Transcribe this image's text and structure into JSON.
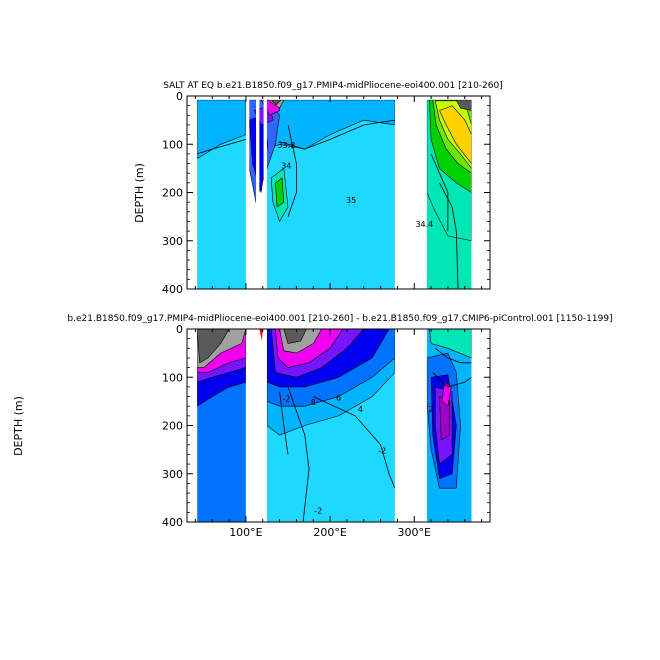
{
  "chart_data": [
    {
      "type": "heatmap",
      "title": "SALT AT EQ  b.e21.B1850.f09_g17.PMIP4-midPliocene-eoi400.001  [210-260]",
      "xlabel": "",
      "ylabel": "DEPTH (m)",
      "xlim": [
        30,
        390
      ],
      "ylim": [
        400,
        0
      ],
      "xticks": [],
      "yticks": [
        {
          "v": 0,
          "label": "0"
        },
        {
          "v": 100,
          "label": "100"
        },
        {
          "v": 200,
          "label": "200"
        },
        {
          "v": 300,
          "label": "300"
        },
        {
          "v": 400,
          "label": "400"
        }
      ],
      "contour_labels": [
        {
          "x": 148,
          "y": 108,
          "text": "33.8"
        },
        {
          "x": 148,
          "y": 150,
          "text": "34"
        },
        {
          "x": 225,
          "y": 222,
          "text": "35"
        },
        {
          "x": 312,
          "y": 272,
          "text": "34.4"
        }
      ]
    },
    {
      "type": "heatmap",
      "title": "b.e21.B1850.f09_g17.PMIP4-midPliocene-eoi400.001  [210-260]  -  b.e21.B1850.f09_g17.CMIP6-piControl.001  [1150-1199]",
      "xlabel": "",
      "ylabel": "DEPTH (m)",
      "xlim": [
        30,
        390
      ],
      "ylim": [
        400,
        0
      ],
      "xticks": [
        {
          "v": 100,
          "label": "100°E"
        },
        {
          "v": 200,
          "label": "200°E"
        },
        {
          "v": 300,
          "label": "300°E"
        }
      ],
      "yticks": [
        {
          "v": 0,
          "label": "0"
        },
        {
          "v": 100,
          "label": "100"
        },
        {
          "v": 200,
          "label": "200"
        },
        {
          "v": 300,
          "label": "300"
        },
        {
          "v": 400,
          "label": "400"
        }
      ],
      "contour_labels": [
        {
          "x": 148,
          "y": 150,
          "text": "-2"
        },
        {
          "x": 180,
          "y": 158,
          "text": "8"
        },
        {
          "x": 210,
          "y": 148,
          "text": "6"
        },
        {
          "x": 236,
          "y": 172,
          "text": "4"
        },
        {
          "x": 262,
          "y": 258,
          "text": "-2"
        },
        {
          "x": 186,
          "y": 382,
          "text": "-2"
        },
        {
          "x": 320,
          "y": 172,
          "text": "2"
        }
      ]
    }
  ],
  "colors": {
    "cyan": "#1ed8ff",
    "light_blue": "#00b4ff",
    "medium_blue": "#0073ff",
    "royal_blue": "#3264ff",
    "blue": "#0000f0",
    "purple": "#7814ff",
    "violet": "#a000c8",
    "magenta": "#f000f0",
    "gray": "#a0a0a0",
    "dark_gray": "#5a5a5a",
    "green": "#00d200",
    "light_green": "#6ee600",
    "yellow_green": "#c8ff00",
    "yellow": "#ffd200",
    "teal": "#00e6b4",
    "red": "#ff0000",
    "land": "#ffffff"
  }
}
